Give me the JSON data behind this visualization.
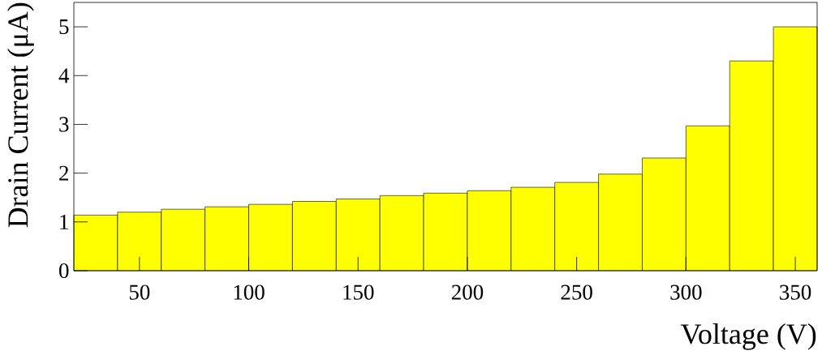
{
  "chart_data": {
    "type": "histogram",
    "xlabel": "Voltage (V)",
    "ylabel": "Drain Current (μA)",
    "bins": [
      20,
      40,
      60,
      80,
      100,
      120,
      140,
      160,
      180,
      200,
      220,
      240,
      260,
      280,
      300,
      320,
      340,
      360
    ],
    "values": [
      1.14,
      1.2,
      1.26,
      1.31,
      1.36,
      1.42,
      1.47,
      1.54,
      1.59,
      1.64,
      1.71,
      1.81,
      1.98,
      2.31,
      2.97,
      4.3,
      5.0
    ],
    "color": "#ffff00",
    "xlim": [
      20,
      360
    ],
    "ylim": [
      0,
      5.5
    ],
    "xticks": [
      50,
      100,
      150,
      200,
      250,
      300,
      350
    ],
    "yticks": [
      0,
      1,
      2,
      3,
      4,
      5
    ]
  }
}
